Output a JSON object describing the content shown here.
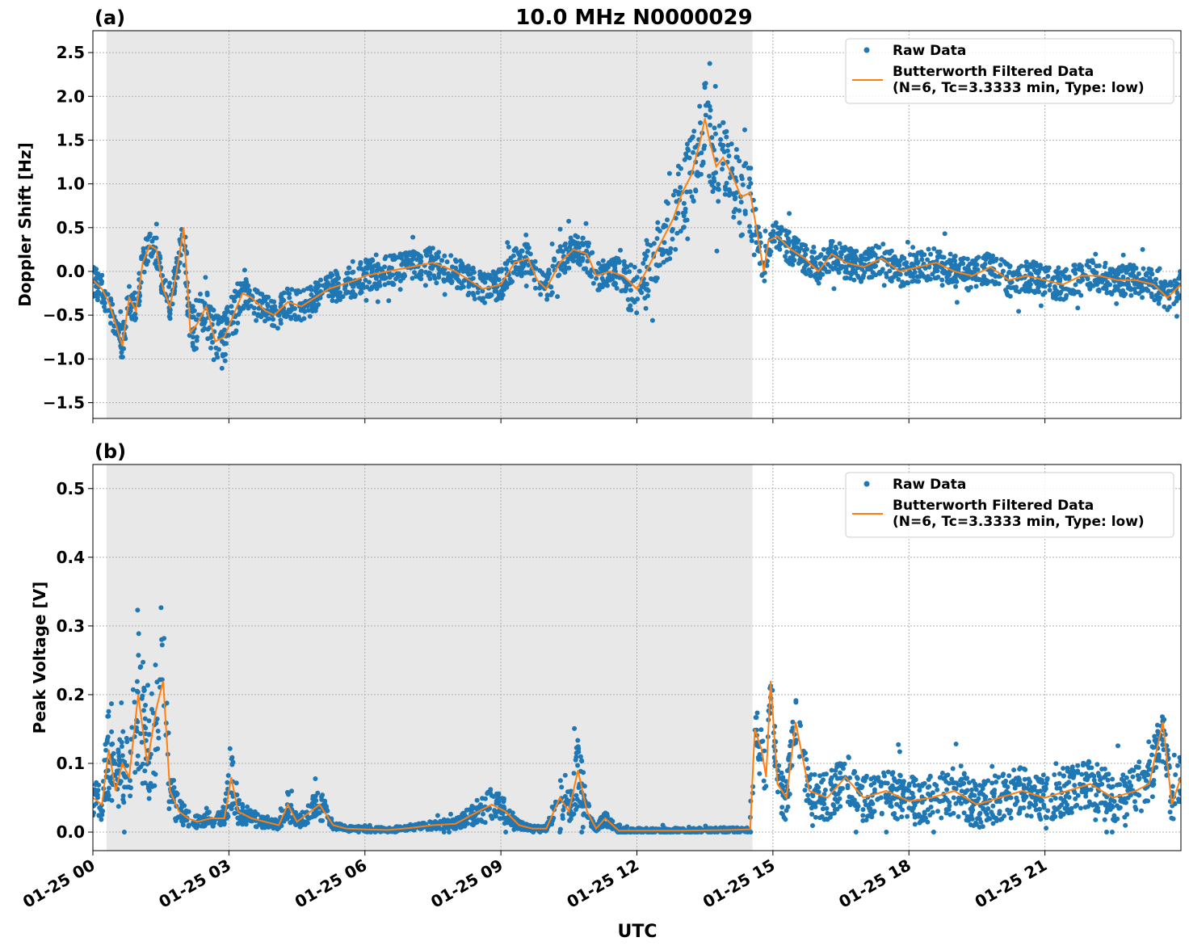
{
  "figure": {
    "title": "10.0 MHz N0000029",
    "xlabel": "UTC"
  },
  "colors": {
    "raw": "#1f77b4",
    "filtered": "#ff7f0e",
    "shade": "#e8e8e8",
    "grid": "#b0b0b0"
  },
  "chart_data": [
    {
      "panel_label": "(a)",
      "type": "scatter",
      "ylabel": "Doppler Shift [Hz]",
      "xlim_hours": [
        0,
        24
      ],
      "ylim": [
        -1.68,
        2.75
      ],
      "x_tick_labels": [
        "01-25 00",
        "01-25 03",
        "01-25 06",
        "01-25 09",
        "01-25 12",
        "01-25 15",
        "01-25 18",
        "01-25 21"
      ],
      "x_tick_hours": [
        0,
        3,
        6,
        9,
        12,
        15,
        18,
        21
      ],
      "y_ticks": [
        -1.5,
        -1.0,
        -0.5,
        0.0,
        0.5,
        1.0,
        1.5,
        2.0,
        2.5
      ],
      "y_tick_labels": [
        "−1.5",
        "−1.0",
        "−0.5",
        "0.0",
        "0.5",
        "1.0",
        "1.5",
        "2.0",
        "2.5"
      ],
      "shaded_region_hours": [
        0.3,
        14.55
      ],
      "grid": true,
      "legend_position": "top-right",
      "legend": [
        {
          "label": "Raw Data",
          "kind": "marker"
        },
        {
          "label": "Butterworth Filtered Data",
          "label2": "(N=6, Tc=3.3333 min, Type: low)",
          "kind": "line"
        }
      ],
      "series": [
        {
          "name": "Butterworth Filtered Data",
          "x_hours": [
            0,
            0.2,
            0.35,
            0.5,
            0.65,
            0.8,
            0.95,
            1.1,
            1.25,
            1.4,
            1.55,
            1.7,
            1.85,
            2.0,
            2.15,
            2.3,
            2.5,
            2.7,
            2.9,
            3.1,
            3.3,
            3.5,
            3.8,
            4.0,
            4.3,
            4.6,
            4.9,
            5.2,
            5.5,
            5.8,
            6.0,
            6.5,
            7.0,
            7.5,
            8.0,
            8.3,
            8.6,
            9.0,
            9.3,
            9.6,
            9.8,
            10.0,
            10.3,
            10.6,
            10.9,
            11.1,
            11.4,
            11.7,
            12.0,
            12.2,
            12.4,
            12.6,
            12.8,
            13.0,
            13.2,
            13.4,
            13.5,
            13.6,
            13.75,
            13.9,
            14.1,
            14.3,
            14.5,
            14.6,
            14.7,
            14.8,
            14.9,
            15.1,
            15.4,
            15.7,
            16.0,
            16.3,
            16.6,
            17.0,
            17.4,
            17.8,
            18.2,
            18.6,
            19.0,
            19.4,
            19.8,
            20.2,
            20.6,
            21.0,
            21.4,
            21.8,
            22.2,
            22.6,
            23.0,
            23.4,
            23.7,
            24.0
          ],
          "y": [
            -0.1,
            -0.2,
            -0.35,
            -0.6,
            -0.85,
            -0.3,
            -0.45,
            0.1,
            0.3,
            0.25,
            -0.2,
            -0.4,
            0.0,
            0.5,
            -0.7,
            -0.6,
            -0.4,
            -0.8,
            -0.75,
            -0.5,
            -0.25,
            -0.3,
            -0.45,
            -0.5,
            -0.35,
            -0.4,
            -0.3,
            -0.2,
            -0.15,
            -0.1,
            -0.05,
            0.0,
            0.05,
            0.1,
            0.0,
            -0.1,
            -0.2,
            -0.15,
            0.1,
            0.15,
            -0.1,
            -0.2,
            0.1,
            0.25,
            0.2,
            -0.05,
            0.0,
            -0.05,
            -0.2,
            0.0,
            0.2,
            0.4,
            0.6,
            0.9,
            1.1,
            1.5,
            1.75,
            1.5,
            1.2,
            1.3,
            1.1,
            0.85,
            0.9,
            0.6,
            0.3,
            0.0,
            0.35,
            0.4,
            0.25,
            0.15,
            0.0,
            0.2,
            0.1,
            0.05,
            0.15,
            0.0,
            0.05,
            0.1,
            0.0,
            -0.05,
            0.05,
            -0.1,
            -0.05,
            -0.1,
            -0.15,
            -0.05,
            -0.05,
            -0.1,
            -0.1,
            -0.15,
            -0.3,
            -0.15
          ]
        }
      ]
    },
    {
      "panel_label": "(b)",
      "type": "scatter",
      "ylabel": "Peak Voltage [V]",
      "xlim_hours": [
        0,
        24
      ],
      "ylim": [
        -0.027,
        0.535
      ],
      "x_tick_labels": [
        "01-25 00",
        "01-25 03",
        "01-25 06",
        "01-25 09",
        "01-25 12",
        "01-25 15",
        "01-25 18",
        "01-25 21"
      ],
      "x_tick_hours": [
        0,
        3,
        6,
        9,
        12,
        15,
        18,
        21
      ],
      "y_ticks": [
        0.0,
        0.1,
        0.2,
        0.3,
        0.4,
        0.5
      ],
      "y_tick_labels": [
        "0.0",
        "0.1",
        "0.2",
        "0.3",
        "0.4",
        "0.5"
      ],
      "shaded_region_hours": [
        0.3,
        14.55
      ],
      "grid": true,
      "legend_position": "top-right",
      "legend": [
        {
          "label": "Raw Data",
          "kind": "marker"
        },
        {
          "label": "Butterworth Filtered Data",
          "label2": "(N=6, Tc=3.3333 min, Type: low)",
          "kind": "line"
        }
      ],
      "series": [
        {
          "name": "Butterworth Filtered Data",
          "x_hours": [
            0,
            0.2,
            0.35,
            0.5,
            0.65,
            0.8,
            1.0,
            1.2,
            1.4,
            1.55,
            1.7,
            1.9,
            2.1,
            2.3,
            2.6,
            2.9,
            3.05,
            3.2,
            3.5,
            3.8,
            4.1,
            4.3,
            4.5,
            4.8,
            5.0,
            5.3,
            5.6,
            6.0,
            6.5,
            7.0,
            7.5,
            8.0,
            8.5,
            8.8,
            9.1,
            9.4,
            9.7,
            10.0,
            10.3,
            10.5,
            10.7,
            10.9,
            11.1,
            11.3,
            11.6,
            11.8,
            12.0,
            13.0,
            14.0,
            14.5,
            14.6,
            14.75,
            14.85,
            14.95,
            15.1,
            15.3,
            15.5,
            15.8,
            16.2,
            16.6,
            17.0,
            17.5,
            18.0,
            18.5,
            19.0,
            19.5,
            20.0,
            20.5,
            21.0,
            21.5,
            22.0,
            22.5,
            23.0,
            23.3,
            23.6,
            23.8,
            24.0
          ],
          "y": [
            0.05,
            0.04,
            0.12,
            0.06,
            0.1,
            0.08,
            0.2,
            0.1,
            0.18,
            0.22,
            0.06,
            0.03,
            0.02,
            0.015,
            0.02,
            0.02,
            0.08,
            0.03,
            0.02,
            0.015,
            0.01,
            0.04,
            0.015,
            0.03,
            0.04,
            0.01,
            0.005,
            0.004,
            0.003,
            0.006,
            0.01,
            0.012,
            0.03,
            0.04,
            0.03,
            0.01,
            0.005,
            0.005,
            0.05,
            0.03,
            0.09,
            0.03,
            0.005,
            0.02,
            0.002,
            0.002,
            0.002,
            0.002,
            0.003,
            0.004,
            0.15,
            0.12,
            0.08,
            0.22,
            0.07,
            0.05,
            0.16,
            0.06,
            0.05,
            0.08,
            0.05,
            0.06,
            0.045,
            0.05,
            0.06,
            0.04,
            0.05,
            0.06,
            0.05,
            0.06,
            0.07,
            0.05,
            0.06,
            0.07,
            0.16,
            0.04,
            0.08
          ]
        }
      ]
    }
  ]
}
